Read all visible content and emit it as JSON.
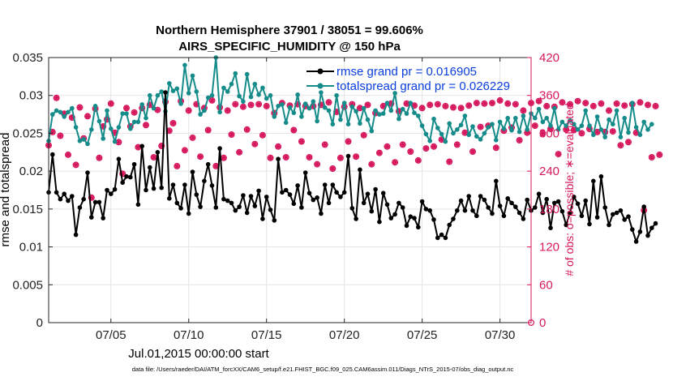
{
  "chart_data": {
    "type": "line",
    "title": "Northern Hemisphere 37901 / 38051 = 99.606%",
    "subtitle": "AIRS_SPECIFIC_HUMIDITY @ 150 hPa",
    "xlabel": "Jul.01,2015 00:00:00 start",
    "ylabel": "rmse and totalspread",
    "y2label": "# of obs: o=possible; ∗=evaluated",
    "xlim": [
      1,
      32
    ],
    "ylim": [
      0,
      0.035
    ],
    "y2lim": [
      0,
      420
    ],
    "x_ticks": [
      5,
      10,
      15,
      20,
      25,
      30
    ],
    "x_tick_labels": [
      "07/05",
      "07/10",
      "07/15",
      "07/20",
      "07/25",
      "07/30"
    ],
    "y_ticks": [
      0,
      0.005,
      0.01,
      0.015,
      0.02,
      0.025,
      0.03,
      0.035
    ],
    "y_tick_labels": [
      "0",
      "0.005",
      "0.01",
      "0.015",
      "0.02",
      "0.025",
      "0.03",
      "0.035"
    ],
    "y2_ticks": [
      0,
      60,
      120,
      180,
      240,
      300,
      360,
      420
    ],
    "y2_tick_labels": [
      "0",
      "60",
      "120",
      "180",
      "240",
      "300",
      "360",
      "420"
    ],
    "grid": true,
    "legend": "top-right",
    "x_step_days": 0.25,
    "series": [
      {
        "name": "rmse grand pr = 0.016905",
        "axis": "left",
        "color": "#000000",
        "values": [
          0.0172,
          0.0222,
          0.0172,
          0.0163,
          0.017,
          0.0161,
          0.0167,
          0.0116,
          0.0152,
          0.0163,
          0.0198,
          0.0139,
          0.0159,
          0.0159,
          0.0138,
          0.0175,
          0.017,
          0.0176,
          0.0216,
          0.0185,
          0.0193,
          0.0192,
          0.0209,
          0.0156,
          0.0233,
          0.0175,
          0.0205,
          0.0177,
          0.0225,
          0.0178,
          0.0304,
          0.0164,
          0.0182,
          0.0158,
          0.0151,
          0.0182,
          0.0144,
          0.0199,
          0.0169,
          0.0153,
          0.0187,
          0.0209,
          0.0181,
          0.0152,
          0.023,
          0.0163,
          0.0161,
          0.0158,
          0.0148,
          0.0153,
          0.0168,
          0.0145,
          0.0167,
          0.0154,
          0.0174,
          0.0137,
          0.0166,
          0.0149,
          0.0135,
          0.0216,
          0.0172,
          0.0175,
          0.0169,
          0.0157,
          0.0181,
          0.0152,
          0.0198,
          0.0171,
          0.0162,
          0.0165,
          0.0144,
          0.0182,
          0.0158,
          0.0182,
          0.0172,
          0.0166,
          0.0172,
          0.022,
          0.0151,
          0.0137,
          0.0202,
          0.0158,
          0.017,
          0.0147,
          0.0176,
          0.0133,
          0.0171,
          0.0156,
          0.0138,
          0.0143,
          0.0158,
          0.0152,
          0.0128,
          0.014,
          0.0138,
          0.0126,
          0.016,
          0.015,
          0.0148,
          0.0136,
          0.0112,
          0.0116,
          0.0112,
          0.0129,
          0.0137,
          0.0148,
          0.0161,
          0.0148,
          0.0167,
          0.0148,
          0.0141,
          0.0167,
          0.0162,
          0.0152,
          0.0144,
          0.0187,
          0.0154,
          0.0141,
          0.0164,
          0.0158,
          0.0153,
          0.0145,
          0.0137,
          0.0162,
          0.0148,
          0.0152,
          0.017,
          0.0145,
          0.0163,
          0.0125,
          0.0158,
          0.016,
          0.0147,
          0.0129,
          0.0145,
          0.0166,
          0.0157,
          0.0141,
          0.0161,
          0.013,
          0.0187,
          0.0139,
          0.0193,
          0.0152,
          0.0129,
          0.0143,
          0.0145,
          0.0148,
          0.0136,
          0.014,
          0.0123,
          0.0107,
          0.012,
          0.0153,
          0.0115,
          0.0125,
          0.0131
        ]
      },
      {
        "name": "totalspread grand pr = 0.026229",
        "axis": "left",
        "color": "#158c8a",
        "values": [
          0.024,
          0.0275,
          0.028,
          0.0278,
          0.0272,
          0.0278,
          0.0283,
          0.0258,
          0.024,
          0.0242,
          0.0236,
          0.0255,
          0.0286,
          0.0266,
          0.0243,
          0.028,
          0.0256,
          0.0239,
          0.0258,
          0.0276,
          0.0276,
          0.0256,
          0.0265,
          0.0265,
          0.0288,
          0.027,
          0.03,
          0.0283,
          0.03,
          0.0305,
          0.0279,
          0.0316,
          0.0306,
          0.0309,
          0.0289,
          0.034,
          0.0303,
          0.0326,
          0.0305,
          0.0275,
          0.028,
          0.0297,
          0.03,
          0.035,
          0.0278,
          0.031,
          0.0305,
          0.0315,
          0.0329,
          0.0299,
          0.0292,
          0.0328,
          0.0298,
          0.0315,
          0.0301,
          0.031,
          0.0296,
          0.03,
          0.0272,
          0.0286,
          0.0288,
          0.0264,
          0.0284,
          0.0277,
          0.0301,
          0.0272,
          0.0289,
          0.0283,
          0.0292,
          0.0266,
          0.0304,
          0.0284,
          0.028,
          0.0262,
          0.03,
          0.0268,
          0.029,
          0.0262,
          0.0285,
          0.0279,
          0.0263,
          0.0283,
          0.0268,
          0.0253,
          0.028,
          0.0275,
          0.0276,
          0.029,
          0.028,
          0.0303,
          0.0269,
          0.0282,
          0.0276,
          0.029,
          0.0277,
          0.0273,
          0.026,
          0.0249,
          0.024,
          0.0269,
          0.0257,
          0.0249,
          0.0239,
          0.0263,
          0.025,
          0.0255,
          0.0261,
          0.0273,
          0.0248,
          0.0259,
          0.0246,
          0.0242,
          0.025,
          0.0258,
          0.0262,
          0.0241,
          0.0265,
          0.0256,
          0.027,
          0.0254,
          0.027,
          0.0252,
          0.0273,
          0.0255,
          0.0276,
          0.027,
          0.0282,
          0.0265,
          0.027,
          0.026,
          0.0283,
          0.0255,
          0.0265,
          0.026,
          0.0267,
          0.0262,
          0.0255,
          0.026,
          0.028,
          0.026,
          0.0248,
          0.0272,
          0.0255,
          0.0245,
          0.0268,
          0.0262,
          0.028,
          0.0245,
          0.027,
          0.0251,
          0.029,
          0.0258,
          0.0248,
          0.0265,
          0.0255,
          0.0262
        ]
      },
      {
        "name": "# of obs possible",
        "axis": "right",
        "color": "#d6175d",
        "marker": "o",
        "values": [
          281,
          302,
          356,
          296,
          331,
          266,
          325,
          250,
          341,
          292,
          327,
          198,
          339,
          261,
          311,
          322,
          347,
          301,
          286,
          236,
          340,
          311,
          333,
          278,
          340,
          313,
          345,
          262,
          337,
          280,
          350,
          304,
          316,
          248,
          351,
          273,
          336,
          293,
          346,
          263,
          340,
          305,
          352,
          248,
          341,
          261,
          336,
          298,
          346,
          270,
          342,
          306,
          345,
          283,
          346,
          297,
          343,
          261,
          332,
          279,
          348,
          262,
          344,
          305,
          346,
          287,
          343,
          262,
          343,
          251,
          345,
          282,
          349,
          244,
          334,
          261,
          342,
          287,
          346,
          263,
          340,
          297,
          345,
          251,
          332,
          269,
          343,
          279,
          347,
          254,
          335,
          282,
          347,
          271,
          344,
          257,
          340,
          276,
          345,
          279,
          346,
          290,
          343,
          255,
          341,
          282,
          340,
          301,
          344,
          271,
          348,
          310,
          347,
          312,
          348,
          277,
          352,
          304,
          347,
          309,
          346,
          289,
          336,
          301,
          348,
          312,
          351,
          300,
          343,
          307,
          342,
          267,
          349,
          306,
          346,
          305,
          351,
          300,
          348,
          307,
          343,
          302,
          347,
          302,
          336,
          303,
          347,
          281,
          344,
          286,
          346,
          301,
          349,
          178,
          345,
          262,
          343,
          266
        ]
      },
      {
        "name": "# of obs evaluated",
        "axis": "right",
        "color": "#d6175d",
        "marker": "*",
        "values": [
          281,
          302,
          356,
          296,
          331,
          266,
          325,
          250,
          341,
          292,
          327,
          198,
          339,
          261,
          311,
          322,
          347,
          301,
          286,
          236,
          340,
          311,
          333,
          278,
          340,
          313,
          345,
          262,
          337,
          280,
          350,
          304,
          316,
          248,
          351,
          273,
          336,
          293,
          346,
          263,
          340,
          305,
          352,
          248,
          341,
          261,
          336,
          298,
          346,
          270,
          342,
          306,
          345,
          283,
          346,
          297,
          343,
          261,
          332,
          279,
          348,
          262,
          344,
          305,
          346,
          287,
          343,
          262,
          343,
          251,
          345,
          282,
          349,
          244,
          334,
          261,
          342,
          287,
          346,
          263,
          340,
          297,
          345,
          251,
          332,
          269,
          343,
          279,
          347,
          254,
          335,
          282,
          347,
          271,
          344,
          257,
          340,
          276,
          345,
          279,
          346,
          290,
          343,
          255,
          341,
          282,
          340,
          301,
          344,
          271,
          348,
          310,
          347,
          312,
          348,
          277,
          352,
          304,
          347,
          309,
          346,
          289,
          336,
          301,
          348,
          312,
          351,
          300,
          343,
          307,
          342,
          267,
          349,
          306,
          346,
          305,
          351,
          300,
          348,
          307,
          343,
          302,
          347,
          302,
          336,
          303,
          347,
          281,
          344,
          286,
          346,
          301,
          349,
          178,
          345,
          262,
          343,
          266
        ]
      }
    ],
    "footnote": "data file: /Users/raeder/DAI/ATM_forcXX/CAM6_setup/f.e21.FHIST_BGC.f09_025.CAM6assim.011/Diags_NTrS_2015-07/obs_diag_output.nc"
  }
}
